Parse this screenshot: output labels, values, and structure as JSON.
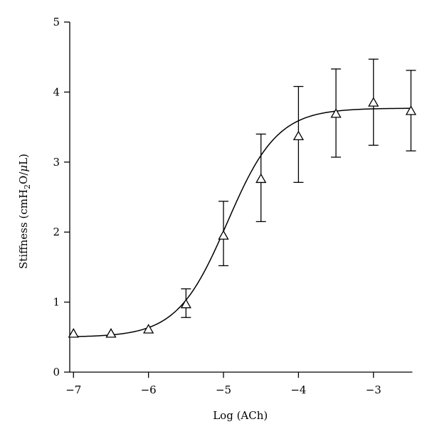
{
  "chart_data": {
    "type": "scatter",
    "title": "",
    "xlabel": "Log (ACh)",
    "ylabel": {
      "prefix": "Stiffness (cmH",
      "subscript": "2",
      "mid": "O/",
      "italic": "μ",
      "suffix": "L)"
    },
    "xlim": [
      -7.05,
      -2.4
    ],
    "ylim": [
      0,
      5
    ],
    "xticks": [
      -7,
      -6,
      -5,
      -4,
      -3
    ],
    "xtick_labels": [
      "−7",
      "−6",
      "−5",
      "−4",
      "−3"
    ],
    "yticks": [
      0,
      1,
      2,
      3,
      4,
      5
    ],
    "ytick_labels": [
      "0",
      "1",
      "2",
      "3",
      "4",
      "5"
    ],
    "grid": false,
    "marker": "open-triangle",
    "points": [
      {
        "x": -7.0,
        "y": 0.55,
        "err_low": null,
        "err_high": null
      },
      {
        "x": -6.5,
        "y": 0.55,
        "err_low": null,
        "err_high": null
      },
      {
        "x": -6.0,
        "y": 0.61,
        "err_low": null,
        "err_high": null
      },
      {
        "x": -5.5,
        "y": 0.97,
        "err_low": 0.78,
        "err_high": 1.19
      },
      {
        "x": -5.0,
        "y": 1.95,
        "err_low": 1.52,
        "err_high": 2.44
      },
      {
        "x": -4.5,
        "y": 2.76,
        "err_low": 2.15,
        "err_high": 3.4
      },
      {
        "x": -4.0,
        "y": 3.37,
        "err_low": 2.71,
        "err_high": 4.08
      },
      {
        "x": -3.5,
        "y": 3.69,
        "err_low": 3.07,
        "err_high": 4.33
      },
      {
        "x": -3.0,
        "y": 3.85,
        "err_low": 3.24,
        "err_high": 4.47
      },
      {
        "x": -2.5,
        "y": 3.73,
        "err_low": 3.16,
        "err_high": 4.31
      }
    ],
    "fit_curve": {
      "bottom": 0.5,
      "top": 3.77,
      "log_ec50": -4.95,
      "hill": 1.3
    }
  }
}
